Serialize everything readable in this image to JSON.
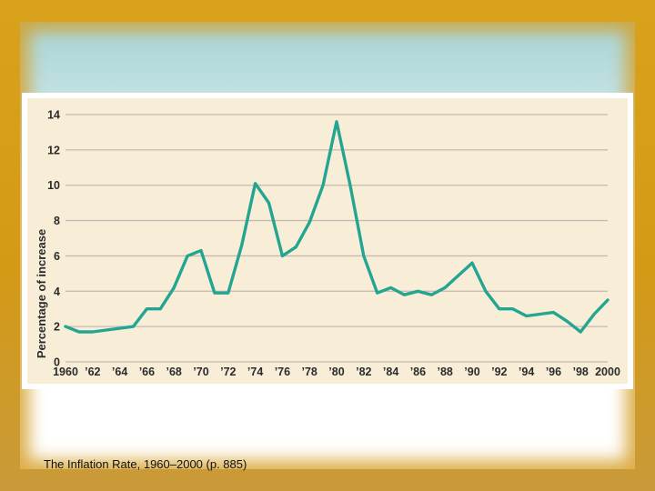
{
  "caption": "The Inflation Rate, 1960–2000 (p. 885)",
  "colors": {
    "frame": "#d39a16",
    "plot_background": "#f8eed8",
    "gridline": "#c8b6b0",
    "line": "#23a591",
    "text": "#2b2b2b"
  },
  "chart_data": {
    "type": "line",
    "title": "",
    "xlabel": "",
    "ylabel": "Percentage of increase",
    "xlim": [
      1960,
      2000
    ],
    "ylim": [
      0,
      14
    ],
    "grid": true,
    "x_ticks": [
      1960,
      1962,
      1964,
      1966,
      1968,
      1970,
      1972,
      1974,
      1976,
      1978,
      1980,
      1982,
      1984,
      1986,
      1988,
      1990,
      1992,
      1994,
      1996,
      1998,
      2000
    ],
    "x_tick_labels": [
      "1960",
      "’62",
      "’64",
      "’66",
      "’68",
      "’70",
      "’72",
      "’74",
      "’76",
      "’78",
      "’80",
      "’82",
      "’84",
      "’86",
      "’88",
      "’90",
      "’92",
      "’94",
      "’96",
      "’98",
      "2000"
    ],
    "y_ticks": [
      0,
      2,
      4,
      6,
      8,
      10,
      12,
      14
    ],
    "y_tick_labels": [
      "0",
      "2",
      "4",
      "6",
      "8",
      "10",
      "12",
      "14"
    ],
    "series": [
      {
        "name": "",
        "x": [
          1960,
          1961,
          1962,
          1963,
          1964,
          1965,
          1966,
          1967,
          1968,
          1969,
          1970,
          1971,
          1972,
          1973,
          1974,
          1975,
          1976,
          1977,
          1978,
          1979,
          1980,
          1981,
          1982,
          1983,
          1984,
          1985,
          1986,
          1987,
          1988,
          1989,
          1990,
          1991,
          1992,
          1993,
          1994,
          1995,
          1996,
          1997,
          1998,
          1999,
          2000
        ],
        "y": [
          2.0,
          1.7,
          1.7,
          1.8,
          1.9,
          2.0,
          3.0,
          3.0,
          4.2,
          6.0,
          6.3,
          3.9,
          3.9,
          6.6,
          10.1,
          9.0,
          6.0,
          6.5,
          7.9,
          10.0,
          13.6,
          10.0,
          6.0,
          3.9,
          4.2,
          3.8,
          4.0,
          3.8,
          4.2,
          4.9,
          5.6,
          4.0,
          3.0,
          3.0,
          2.6,
          2.7,
          2.8,
          2.3,
          1.7,
          2.7,
          3.5
        ]
      }
    ]
  }
}
